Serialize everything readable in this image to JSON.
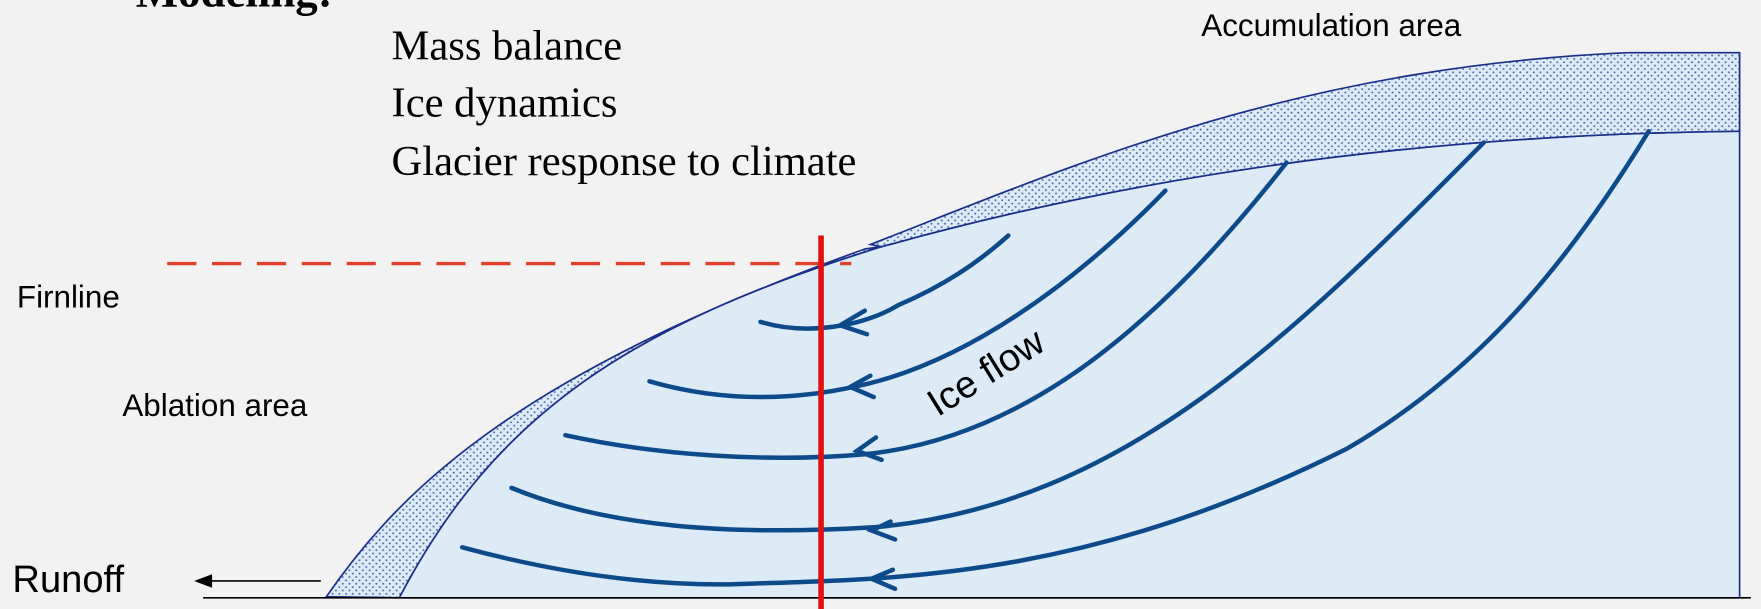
{
  "header": {
    "title": "Modeling:"
  },
  "topics": [
    "Mass balance",
    "Ice dynamics",
    "Glacier response to climate"
  ],
  "labels": {
    "accumulation": "Accumulation area",
    "firnline": "Firnline",
    "ablation": "Ablation area",
    "runoff": "Runoff",
    "ice_flow": "Ice flow"
  }
}
